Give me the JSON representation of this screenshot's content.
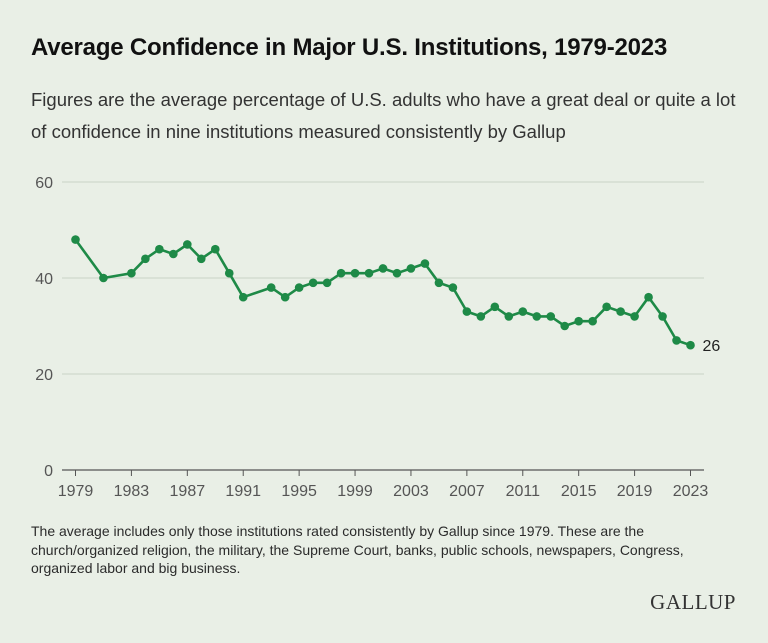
{
  "header": {
    "title": "Average Confidence in Major U.S. Institutions, 1979-2023",
    "subtitle": "Figures are the average percentage of U.S. adults who have a great deal or quite a lot of confidence in nine institutions measured consistently by Gallup"
  },
  "footer": {
    "note": "The average includes only those institutions rated consistently by Gallup since 1979. These are the church/organized religion, the military, the Supreme Court, banks, public schools, newspapers, Congress, organized labor and big business.",
    "brand": "GALLUP"
  },
  "colors": {
    "line": "#1e8a47",
    "grid": "#c9d3c5",
    "background": "#e9efe6"
  },
  "chart_data": {
    "type": "line",
    "title": "Average Confidence in Major U.S. Institutions, 1979-2023",
    "xlabel": "",
    "ylabel": "",
    "xlim": [
      1979,
      2023
    ],
    "ylim": [
      0,
      60
    ],
    "yticks": [
      0,
      20,
      40,
      60
    ],
    "xticks": [
      1979,
      1983,
      1987,
      1991,
      1995,
      1999,
      2003,
      2007,
      2011,
      2015,
      2019,
      2023
    ],
    "grid": true,
    "end_label": "26",
    "series": [
      {
        "x": [
          1979,
          1981,
          1983,
          1984,
          1985,
          1986,
          1987,
          1988,
          1989,
          1990,
          1991,
          1993,
          1994,
          1995,
          1996,
          1997,
          1998,
          1999,
          2000,
          2001,
          2002,
          2003,
          2004,
          2005,
          2006,
          2007,
          2008,
          2009,
          2010,
          2011,
          2012,
          2013,
          2014,
          2015,
          2016,
          2017,
          2018,
          2019,
          2020,
          2021,
          2022,
          2023
        ],
        "values": [
          48,
          40,
          41,
          44,
          46,
          45,
          47,
          44,
          46,
          41,
          36,
          38,
          36,
          38,
          39,
          39,
          41,
          41,
          41,
          42,
          41,
          42,
          43,
          39,
          38,
          33,
          32,
          34,
          32,
          33,
          32,
          32,
          30,
          31,
          31,
          34,
          33,
          32,
          36,
          32,
          27,
          26
        ]
      }
    ]
  }
}
